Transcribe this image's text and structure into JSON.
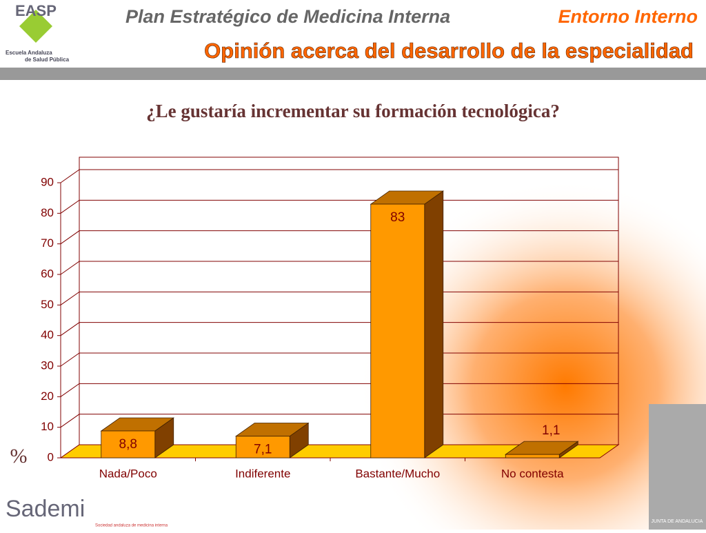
{
  "header": {
    "title": "Plan Estratégico de Medicina Interna",
    "section": "Entorno Interno",
    "subtitle": "Opinión acerca del desarrollo de la especialidad"
  },
  "logos": {
    "easp": "EASP",
    "easp_line1": "Escuela Andaluza",
    "easp_line2": "de Salud Pública",
    "sademi": "Sademi",
    "sademi_caption": "Sociedad andaluza de medicina interna",
    "junta": "JUNTA DE ANDALUCIA"
  },
  "chart_data": {
    "type": "bar3d",
    "title": "¿Le gustaría incrementar su formación tecnológica?",
    "y_label": "%",
    "categories": [
      "Nada/Poco",
      "Indiferente",
      "Bastante/Mucho",
      "No contesta"
    ],
    "values": [
      8.8,
      7.1,
      83,
      1.1
    ],
    "value_labels": [
      "8,8",
      "7,1",
      "83",
      "1,1"
    ],
    "color": "#ff9900",
    "ylim": [
      0,
      90
    ],
    "yticks": [
      0,
      10,
      20,
      30,
      40,
      50,
      60,
      70,
      80,
      90
    ],
    "grid": true
  }
}
